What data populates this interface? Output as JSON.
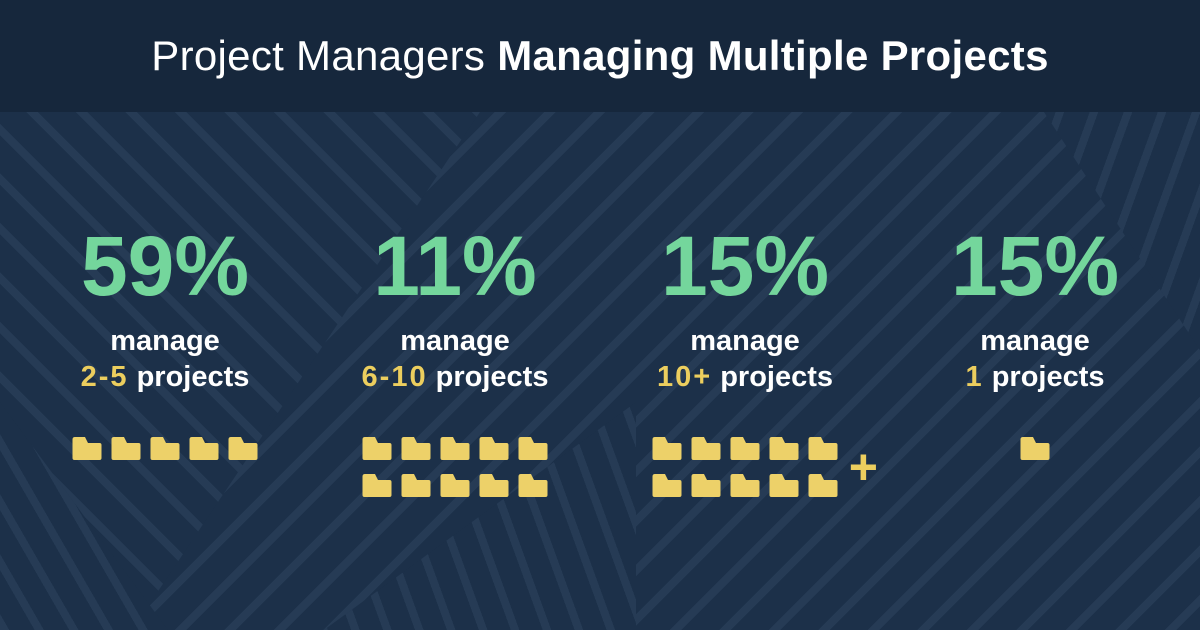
{
  "header": {
    "title_regular": "Project Managers",
    "title_bold": "Managing Multiple Projects"
  },
  "colors": {
    "header_background": "#16273c",
    "body_background": "#1c3049",
    "stripe_tint": "#2a4160",
    "accent_green": "#74d69c",
    "accent_yellow": "#ecce5e",
    "folder_yellow": "#edd169",
    "text_white": "#ffffff"
  },
  "stats": [
    {
      "percent": "59%",
      "line1": "manage",
      "highlight": "2-5",
      "suffix": "projects",
      "folder_rows": [
        5
      ],
      "plus_label": ""
    },
    {
      "percent": "11%",
      "line1": "manage",
      "highlight": "6-10",
      "suffix": "projects",
      "folder_rows": [
        5,
        5
      ],
      "plus_label": ""
    },
    {
      "percent": "15%",
      "line1": "manage",
      "highlight": "10+",
      "suffix": "projects",
      "folder_rows": [
        5,
        5
      ],
      "plus_label": "+"
    },
    {
      "percent": "15%",
      "line1": "manage",
      "highlight": "1",
      "suffix": "projects",
      "folder_rows": [
        1
      ],
      "plus_label": ""
    }
  ],
  "chart_data": {
    "type": "pictograph",
    "title": "Project Managers Managing Multiple Projects",
    "categories": [
      "2-5 projects",
      "6-10 projects",
      "10+ projects",
      "1 projects"
    ],
    "values": [
      59,
      11,
      15,
      15
    ],
    "unit": "%",
    "icon": "folder",
    "icon_counts": [
      5,
      10,
      10,
      1
    ],
    "legend_position": "none",
    "grid": false
  }
}
